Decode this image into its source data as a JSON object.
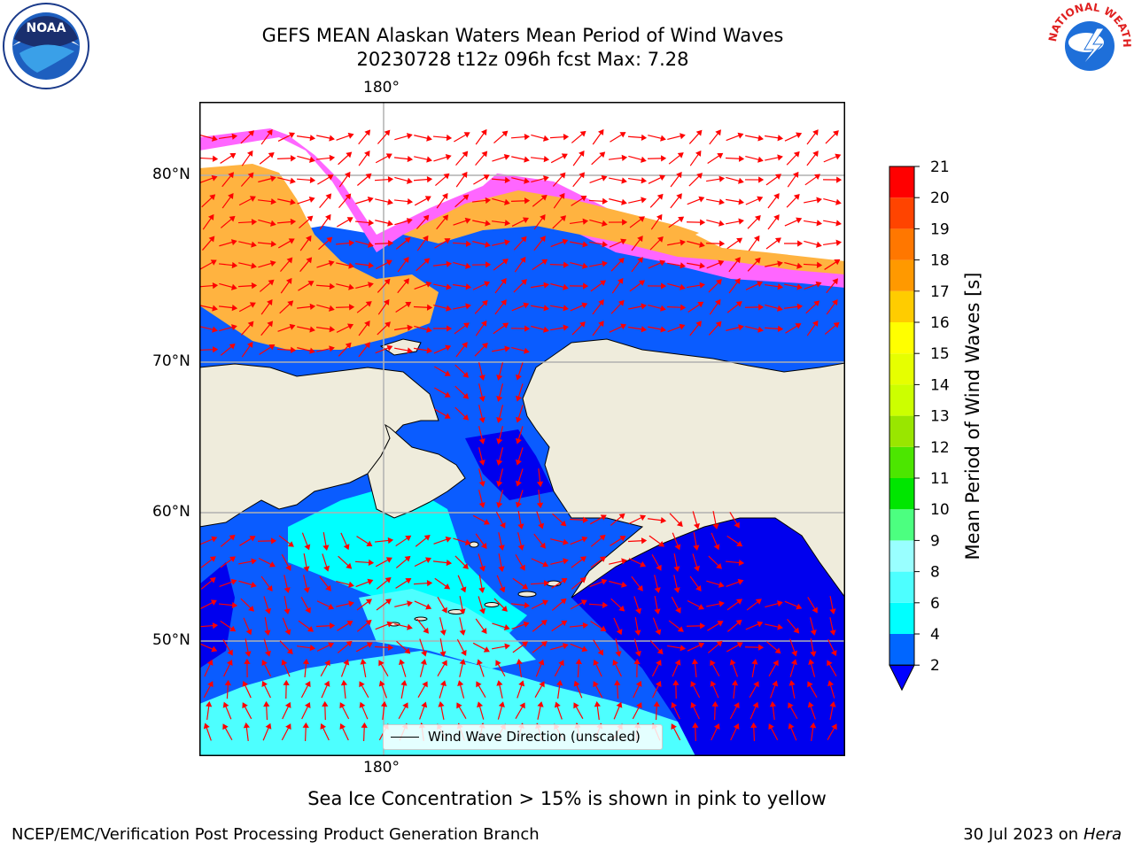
{
  "title": {
    "line1": "GEFS MEAN Alaskan Waters Mean Period of Wind Waves",
    "line2": "20230728 t12z 096h fcst   Max: 7.28"
  },
  "map": {
    "lon_label_top": "180°",
    "lon_label_bottom": "180°",
    "lat_labels": [
      "80°N",
      "70°N",
      "60°N",
      "50°N"
    ],
    "legend_text": "Wind Wave Direction (unscaled)",
    "colors": {
      "land": "#efecdc",
      "wave_2_4": "#0a5cff",
      "wave_deep": "#0000ee",
      "wave_4_6": "#00ffff",
      "wave_6_8": "#4dffff",
      "ice_pink": "#ff66ff",
      "ice_orange": "#ffb340",
      "arrow": "#ff0000",
      "grid": "#b0b0b0"
    }
  },
  "colorbar": {
    "label": "Mean Period of Wind Waves [s]",
    "ticks": [
      "2",
      "4",
      "6",
      "8",
      "9",
      "10",
      "11",
      "12",
      "13",
      "14",
      "15",
      "16",
      "17",
      "18",
      "19",
      "20",
      "21"
    ],
    "colors": [
      "#0066ff",
      "#00ffff",
      "#4dffff",
      "#99ffff",
      "#4cff80",
      "#00e600",
      "#4ce600",
      "#99e600",
      "#ccff00",
      "#e6ff00",
      "#ffff00",
      "#ffcc00",
      "#ff9900",
      "#ff7700",
      "#ff4400",
      "#ff0000"
    ],
    "extend_color": "#0000ff"
  },
  "footnote": "Sea Ice Concentration > 15% is shown in pink to yellow",
  "credit_left": "NCEP/EMC/Verification Post Processing Product Generation Branch",
  "credit_right_prefix": "30 Jul 2023 on ",
  "credit_right_host": "Hera",
  "logos": {
    "noaa": "NOAA",
    "nws": "NATIONAL WEATHER SERVICE"
  }
}
